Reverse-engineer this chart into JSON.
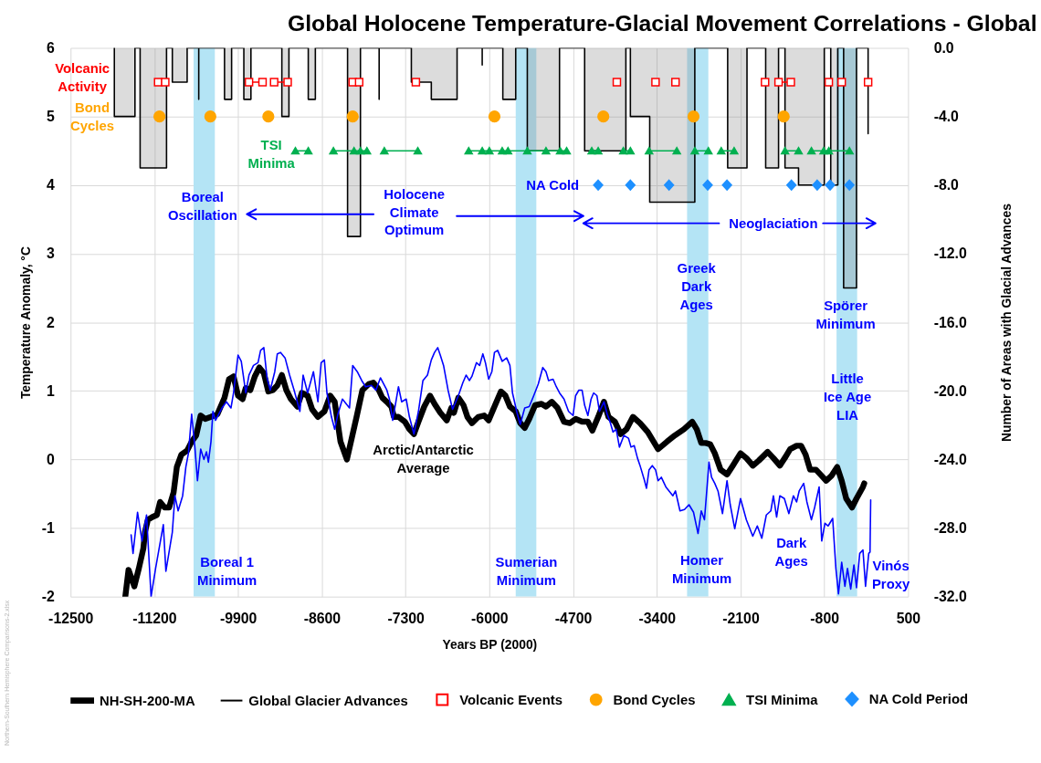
{
  "chart_data": {
    "type": "line",
    "title": "Global Holocene Temperature-Glacial Movement Correlations - Global",
    "xlabel": "Years BP (2000)",
    "ylabel": "Temperature Anomaly, °C",
    "y2label": "Number of Areas with Glacial Advances",
    "xlim": [
      -12500,
      500
    ],
    "xticks": [
      -12500,
      -11200,
      -9900,
      -8600,
      -7300,
      -6000,
      -4700,
      -3400,
      -2100,
      -800,
      500
    ],
    "ylim": [
      -2,
      6
    ],
    "yticks": [
      -2,
      -1,
      0,
      1,
      2,
      3,
      4,
      5,
      6
    ],
    "y2lim": [
      -32,
      0
    ],
    "y2ticks": [
      {
        "value": 0,
        "label": "0.0"
      },
      {
        "value": -4,
        "label": "-4.0"
      },
      {
        "value": -8,
        "label": "-8.0"
      },
      {
        "value": -12,
        "label": "-12.0"
      },
      {
        "value": -16,
        "label": "-16.0"
      },
      {
        "value": -20,
        "label": "-20.0"
      },
      {
        "value": -24,
        "label": "-24.0"
      },
      {
        "value": -28,
        "label": "-28.0"
      },
      {
        "value": -32,
        "label": "-32.0"
      }
    ],
    "grid": true,
    "legend": "bottom",
    "series": [
      {
        "name": "NH-SH-200-MA",
        "color": "#000000",
        "x": [
          -11650,
          -11600,
          -11510,
          -11440,
          -11370,
          -11345,
          -11300,
          -11230,
          -11160,
          -11110,
          -11040,
          -10970,
          -10900,
          -10850,
          -10780,
          -10690,
          -10620,
          -10550,
          -10480,
          -10410,
          -10320,
          -10220,
          -10110,
          -10040,
          -9970,
          -9900,
          -9830,
          -9780,
          -9710,
          -9640,
          -9570,
          -9500,
          -9430,
          -9360,
          -9290,
          -9220,
          -9150,
          -9080,
          -8980,
          -8910,
          -8820,
          -8750,
          -8660,
          -8560,
          -8470,
          -8400,
          -8310,
          -8210,
          -8060,
          -7970,
          -7870,
          -7800,
          -7730,
          -7660,
          -7590,
          -7520,
          -7480,
          -7410,
          -7310,
          -7240,
          -7170,
          -7100,
          -7010,
          -6920,
          -6850,
          -6760,
          -6660,
          -6590,
          -6550,
          -6480,
          -6400,
          -6340,
          -6270,
          -6170,
          -6080,
          -6010,
          -5920,
          -5820,
          -5750,
          -5680,
          -5590,
          -5520,
          -5450,
          -5380,
          -5290,
          -5190,
          -5120,
          -5030,
          -4940,
          -4840,
          -4750,
          -4660,
          -4560,
          -4470,
          -4400,
          -4310,
          -4220,
          -4150,
          -4050,
          -3960,
          -3870,
          -3770,
          -3660,
          -3540,
          -3380,
          -3240,
          -3120,
          -2980,
          -2850,
          -2780,
          -2710,
          -2640,
          -2570,
          -2500,
          -2410,
          -2310,
          -2220,
          -2100,
          -2010,
          -1910,
          -1820,
          -1680,
          -1590,
          -1490,
          -1400,
          -1330,
          -1230,
          -1160,
          -1090,
          -1020,
          -930,
          -860,
          -770,
          -690,
          -600,
          -530,
          -460,
          -370,
          -300,
          -200,
          -180
        ],
        "values": [
          -2.0,
          -1.61,
          -1.85,
          -1.59,
          -1.3,
          -1.06,
          -0.88,
          -0.84,
          -0.81,
          -0.62,
          -0.7,
          -0.7,
          -0.48,
          -0.11,
          0.07,
          0.13,
          0.26,
          0.35,
          0.64,
          0.59,
          0.62,
          0.66,
          0.9,
          1.17,
          1.21,
          0.93,
          0.88,
          1.04,
          1.01,
          1.21,
          1.34,
          1.26,
          0.99,
          1.01,
          1.08,
          1.23,
          1.01,
          0.88,
          0.77,
          0.97,
          0.93,
          0.73,
          0.62,
          0.7,
          0.93,
          0.84,
          0.26,
          0.0,
          0.62,
          1.01,
          1.1,
          1.12,
          1.04,
          0.9,
          0.84,
          0.77,
          0.62,
          0.62,
          0.55,
          0.44,
          0.37,
          0.55,
          0.77,
          0.93,
          0.81,
          0.68,
          0.57,
          0.75,
          0.68,
          0.9,
          0.79,
          0.62,
          0.53,
          0.62,
          0.64,
          0.57,
          0.77,
          0.99,
          0.93,
          0.77,
          0.7,
          0.53,
          0.46,
          0.59,
          0.79,
          0.81,
          0.77,
          0.84,
          0.75,
          0.55,
          0.53,
          0.59,
          0.55,
          0.55,
          0.42,
          0.62,
          0.84,
          0.62,
          0.55,
          0.37,
          0.44,
          0.62,
          0.53,
          0.4,
          0.15,
          0.26,
          0.35,
          0.44,
          0.55,
          0.44,
          0.24,
          0.24,
          0.22,
          0.09,
          -0.15,
          -0.22,
          -0.09,
          0.09,
          0.02,
          -0.09,
          -0.02,
          0.11,
          0.02,
          -0.09,
          0.04,
          0.15,
          0.2,
          0.2,
          0.07,
          -0.15,
          -0.15,
          -0.22,
          -0.31,
          -0.24,
          -0.11,
          -0.31,
          -0.57,
          -0.7,
          -0.57,
          -0.4,
          -0.35
        ]
      },
      {
        "name": "Global Glacier Advances",
        "color": "#000000",
        "type": "step",
        "axis": "y2",
        "x": [
          -11820,
          -11820,
          -11500,
          -11420,
          -11010,
          -10920,
          -10690,
          -10510,
          -10510,
          -10110,
          -10000,
          -9810,
          -9700,
          -9220,
          -9110,
          -8810,
          -8700,
          -8200,
          -8000,
          -7710,
          -7710,
          -7210,
          -6900,
          -6500,
          -6110,
          -6110,
          -5790,
          -5590,
          -5410,
          -4910,
          -4520,
          -3880,
          -3810,
          -3510,
          -2810,
          -2300,
          -2000,
          -1710,
          -1510,
          -1410,
          -1200,
          -800,
          -700,
          -590,
          -500,
          -300,
          -120
        ],
        "values": [
          0,
          -4,
          0,
          -7,
          0,
          -2,
          0,
          -3,
          0,
          -3,
          0,
          -3,
          0,
          -4,
          0,
          -3,
          0,
          -11,
          0,
          -3,
          0,
          -2,
          -3,
          0,
          -1,
          0,
          -3,
          0,
          -6,
          0,
          -6,
          0,
          -4,
          -9,
          0,
          -7,
          0,
          -7,
          0,
          -7,
          -8,
          0,
          -8,
          0,
          -14,
          0,
          -5
        ]
      },
      {
        "name": "Volcanic Events",
        "color": "#ff0000",
        "marker": "square",
        "x": [
          -11140,
          -11030,
          -10380,
          -9730,
          -9520,
          -9430,
          -9340,
          -9130,
          -8630,
          -8120,
          -8020,
          -7580,
          -7140,
          -5580,
          -4020,
          -3720,
          -3420,
          -3270,
          -3110,
          -2420,
          -1720,
          -1620,
          -1510,
          -1320,
          -1030,
          -730,
          -630,
          -530,
          -330,
          -120
        ],
        "values": [
          5.5,
          5.5,
          null,
          5.5,
          5.5,
          null,
          5.5,
          5.5,
          null,
          5.5,
          5.5,
          null,
          5.5,
          null,
          5.5,
          null,
          5.5,
          null,
          5.5,
          null,
          5.5,
          null,
          5.5,
          5.5,
          null,
          5.5,
          null,
          5.5,
          null,
          5.5
        ]
      },
      {
        "name": "Bond Cycles",
        "color": "#ffa500",
        "type": "scatter",
        "marker": "circle",
        "x": [
          -11120,
          -10330,
          -9430,
          -8120,
          -5920,
          -4230,
          -2830,
          -1430
        ],
        "values": [
          5,
          5,
          5,
          5,
          5,
          5,
          5,
          5
        ]
      },
      {
        "name": "TSI Minima",
        "color": "#00b050",
        "marker": "triangle",
        "x": [
          -9010,
          -8810,
          -8620,
          -8420,
          -8100,
          -8000,
          -7900,
          -7770,
          -7630,
          -7110,
          -6720,
          -6320,
          -6110,
          -6000,
          -5800,
          -5710,
          -5410,
          -5120,
          -4900,
          -4800,
          -4600,
          -4410,
          -4310,
          -4120,
          -3920,
          -3810,
          -3670,
          -3520,
          -3090,
          -2950,
          -2810,
          -2600,
          -2500,
          -2400,
          -2200,
          -1800,
          -1410,
          -1200,
          -1100,
          -1000,
          -810,
          -730,
          -410
        ],
        "values": [
          4.5,
          4.5,
          null,
          4.5,
          4.5,
          4.5,
          4.5,
          null,
          4.5,
          4.5,
          null,
          4.5,
          4.5,
          4.5,
          4.5,
          4.5,
          4.5,
          4.5,
          4.5,
          4.5,
          null,
          4.5,
          4.5,
          null,
          4.5,
          4.5,
          null,
          4.5,
          4.5,
          null,
          4.5,
          4.5,
          null,
          4.5,
          4.5,
          null,
          4.5,
          4.5,
          null,
          4.5,
          4.5,
          4.5,
          4.5
        ]
      },
      {
        "name": "NA Cold Period",
        "color": "#1e90ff",
        "type": "scatter",
        "marker": "diamond",
        "x": [
          -4310,
          -3810,
          -3210,
          -2610,
          -2310,
          -1310,
          -910,
          -710,
          -410
        ],
        "values": [
          4,
          4,
          4,
          4,
          4,
          4,
          4,
          4,
          4
        ]
      },
      {
        "color": "#0000ff",
        "x": [
          -11560,
          -11530,
          -11460,
          -11390,
          -11320,
          -11250,
          -11180,
          -11060,
          -11020,
          -10920,
          -10880,
          -10830,
          -10760,
          -10710,
          -10670,
          -10620,
          -10570,
          -10530,
          -10480,
          -10430,
          -10390,
          -10360,
          -10320,
          -10290,
          -10250,
          -10150,
          -10080,
          -10010,
          -9970,
          -9900,
          -9850,
          -9780,
          -9730,
          -9660,
          -9590,
          -9550,
          -9500,
          -9450,
          -9400,
          -9330,
          -9290,
          -9240,
          -9170,
          -9100,
          -9030,
          -8940,
          -8890,
          -8820,
          -8730,
          -8660,
          -8610,
          -8560,
          -8520,
          -8450,
          -8400,
          -8350,
          -8280,
          -8170,
          -8120,
          -8050,
          -7980,
          -7920,
          -7830,
          -7760,
          -7690,
          -7640,
          -7590,
          -7550,
          -7500,
          -7450,
          -7410,
          -7360,
          -7290,
          -7240,
          -7170,
          -7100,
          -7030,
          -6960,
          -6900,
          -6850,
          -6800,
          -6760,
          -6710,
          -6640,
          -6570,
          -6520,
          -6480,
          -6410,
          -6360,
          -6310,
          -6270,
          -6200,
          -6150,
          -6100,
          -6060,
          -6010,
          -5960,
          -5920,
          -5870,
          -5800,
          -5730,
          -5680,
          -5640,
          -5570,
          -5520,
          -5450,
          -5380,
          -5310,
          -5240,
          -5170,
          -5120,
          -5080,
          -5010,
          -4960,
          -4910,
          -4840,
          -4770,
          -4700,
          -4660,
          -4610,
          -4560,
          -4520,
          -4470,
          -4420,
          -4380,
          -4330,
          -4290,
          -4220,
          -4170,
          -4120,
          -4080,
          -4030,
          -3980,
          -3910,
          -3840,
          -3800,
          -3750,
          -3700,
          -3660,
          -3590,
          -3560,
          -3520,
          -3470,
          -3420,
          -3380,
          -3330,
          -3260,
          -3150,
          -3110,
          -3040,
          -2970,
          -2900,
          -2830,
          -2760,
          -2710,
          -2660,
          -2590,
          -2550,
          -2500,
          -2450,
          -2380,
          -2310,
          -2260,
          -2190,
          -2100,
          -2010,
          -1910,
          -1840,
          -1770,
          -1700,
          -1630,
          -1590,
          -1540,
          -1490,
          -1420,
          -1350,
          -1280,
          -1230,
          -1190,
          -1120,
          -1070,
          -1000,
          -950,
          -880,
          -840,
          -790,
          -740,
          -670,
          -620,
          -580,
          -530,
          -480,
          -440,
          -390,
          -340,
          -300,
          -250,
          -200,
          -160,
          -110,
          -90,
          -80
        ],
        "values": [
          -1.1,
          -1.37,
          -0.77,
          -1.19,
          -0.81,
          -2.0,
          -1.59,
          -0.95,
          -1.63,
          -1.06,
          -0.53,
          -0.75,
          -0.53,
          -0.11,
          0.09,
          0.66,
          0.18,
          -0.31,
          0.15,
          0.0,
          0.11,
          -0.04,
          0.26,
          0.7,
          0.57,
          0.75,
          0.84,
          0.75,
          0.97,
          1.52,
          1.43,
          0.97,
          1.23,
          1.37,
          1.41,
          1.59,
          1.63,
          1.19,
          1.01,
          1.28,
          1.54,
          1.56,
          1.48,
          1.23,
          1.01,
          0.7,
          1.23,
          0.97,
          1.28,
          0.84,
          1.41,
          1.45,
          0.97,
          0.62,
          0.44,
          0.66,
          0.88,
          0.75,
          1.37,
          1.28,
          1.15,
          1.06,
          1.08,
          1.01,
          1.19,
          1.1,
          1.01,
          0.88,
          0.57,
          0.84,
          1.06,
          0.84,
          0.88,
          0.62,
          0.37,
          0.7,
          1.15,
          1.23,
          1.45,
          1.56,
          1.63,
          1.52,
          1.37,
          1.01,
          0.73,
          0.84,
          0.93,
          1.12,
          1.23,
          1.15,
          1.21,
          1.41,
          1.37,
          1.54,
          1.41,
          1.17,
          1.28,
          1.56,
          1.59,
          1.43,
          1.48,
          1.37,
          0.97,
          0.68,
          0.51,
          0.75,
          0.77,
          0.93,
          1.1,
          1.34,
          1.28,
          1.15,
          1.17,
          1.06,
          0.97,
          0.88,
          0.7,
          0.64,
          0.93,
          1.01,
          1.01,
          0.79,
          0.64,
          0.88,
          0.97,
          0.93,
          0.7,
          0.84,
          0.66,
          0.53,
          0.4,
          0.44,
          0.18,
          0.35,
          0.31,
          0.18,
          0.2,
          0.02,
          -0.09,
          -0.31,
          -0.42,
          -0.15,
          -0.09,
          -0.15,
          -0.31,
          -0.26,
          -0.4,
          -0.53,
          -0.46,
          -0.75,
          -0.73,
          -0.66,
          -0.77,
          -1.08,
          -0.75,
          -0.88,
          -0.04,
          -0.26,
          -0.35,
          -0.46,
          -0.79,
          -0.31,
          -0.66,
          -1.01,
          -0.57,
          -0.88,
          -1.12,
          -0.97,
          -1.15,
          -0.81,
          -0.75,
          -0.53,
          -0.84,
          -0.53,
          -0.57,
          -0.79,
          -0.53,
          -0.62,
          -0.46,
          -0.35,
          -0.62,
          -0.88,
          -0.7,
          -0.4,
          -1.19,
          -0.93,
          -0.97,
          -0.86,
          -1.59,
          -1.96,
          -1.5,
          -1.85,
          -1.59,
          -1.89,
          -1.54,
          -1.87,
          -1.37,
          -1.32,
          -1.85,
          -1.37,
          -1.35,
          -0.59
        ]
      }
    ],
    "bands": [
      {
        "axis": "x",
        "from": -10590,
        "to": -10260,
        "color": "#b4e4f5"
      },
      {
        "axis": "x",
        "from": -5590,
        "to": -5270,
        "color": "#b4e4f5"
      },
      {
        "axis": "x",
        "from": -2930,
        "to": -2600,
        "color": "#b4e4f5"
      },
      {
        "axis": "x",
        "from": -610,
        "to": -290,
        "color": "#b4e4f5"
      }
    ],
    "annotations": [
      "Volcanic\nActivity",
      "Bond\nCycles",
      "TSI\nMinima",
      "NA Cold",
      "Boreal\nOscillation",
      "Holocene\nClimate\nOptimum",
      "Neoglaciation",
      "Greek\nDark\nAges",
      "Spörer\nMinimum",
      "Little\nIce Age\nLIA",
      "Arctic/Antarctic\nAverage",
      "Boreal 1\nMinimum",
      "Sumerian\nMinimum",
      "Homer\nMinimum",
      "Dark\nAges",
      "Vinós\nProxy",
      "Northern-Southern Hemisphere Comparisons-2.xlsx"
    ]
  }
}
